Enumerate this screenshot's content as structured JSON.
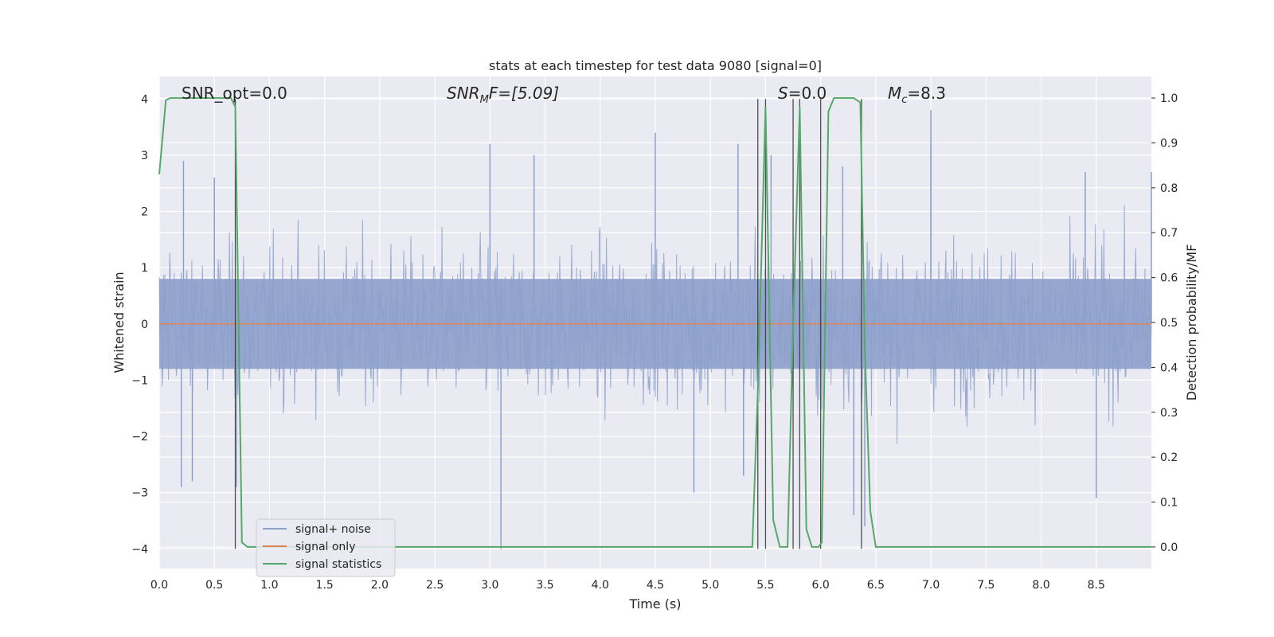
{
  "chart_data": {
    "type": "line",
    "title": "stats at each timestep for test data 9080 [signal=0]",
    "xlabel": "Time (s)",
    "ylabel_left": "Whitened strain",
    "ylabel_right": "Detection probability/MF",
    "xlim": [
      0.0,
      9.0
    ],
    "ylim_left": [
      -4.35,
      4.4
    ],
    "ylim_right": [
      -0.048,
      1.048
    ],
    "x_ticks": [
      "0.0",
      "0.5",
      "1.0",
      "1.5",
      "2.0",
      "2.5",
      "3.0",
      "3.5",
      "4.0",
      "4.5",
      "5.0",
      "5.5",
      "6.0",
      "6.5",
      "7.0",
      "7.5",
      "8.0",
      "8.5"
    ],
    "y_ticks_left": [
      "4",
      "3",
      "2",
      "1",
      "0",
      "−1",
      "−2",
      "−3",
      "−4"
    ],
    "y_ticks_right": [
      "1.0",
      "0.9",
      "0.8",
      "0.7",
      "0.6",
      "0.5",
      "0.4",
      "0.3",
      "0.2",
      "0.1",
      "0.0"
    ],
    "annotations": {
      "snr_opt": "SNR_opt=0.0",
      "snr_mf_main": "SNR",
      "snr_mf_sub": "M",
      "snr_mf_rest": "F=[5.09]",
      "s_main": "S",
      "s_rest": "=0.0",
      "mc_main": "M",
      "mc_sub": "c",
      "mc_rest": "=8.3"
    },
    "legend": {
      "placement": "lower-left",
      "entries": [
        "signal+ noise",
        "signal only",
        "signal statistics"
      ]
    },
    "colors": {
      "noise": "#8da0cb",
      "signal": "#dd8452",
      "stats": "#55a868",
      "vlines": "#333333",
      "bg": "#eaeaf2",
      "grid": "#ffffff"
    },
    "series": [
      {
        "name": "signal statistics",
        "axis": "right",
        "x": [
          0.0,
          0.06,
          0.1,
          0.2,
          0.3,
          0.4,
          0.5,
          0.6,
          0.65,
          0.69,
          0.75,
          0.8,
          0.9,
          1.0,
          2.0,
          3.0,
          4.0,
          5.0,
          5.38,
          5.43,
          5.5,
          5.57,
          5.63,
          5.7,
          5.75,
          5.81,
          5.87,
          5.92,
          5.98,
          6.01,
          6.07,
          6.12,
          6.2,
          6.3,
          6.36,
          6.4,
          6.45,
          6.5,
          6.6,
          6.7,
          7.0,
          8.0,
          8.5,
          9.0
        ],
        "y": [
          0.83,
          0.995,
          1.0,
          1.0,
          1.0,
          1.0,
          1.0,
          1.0,
          1.0,
          0.98,
          0.01,
          0.0,
          0.0,
          0.0,
          0.0,
          0.0,
          0.0,
          0.0,
          0.0,
          0.35,
          0.98,
          0.06,
          0.0,
          0.0,
          0.5,
          0.98,
          0.04,
          0.0,
          0.0,
          0.01,
          0.97,
          1.0,
          1.0,
          1.0,
          0.99,
          0.45,
          0.08,
          0.0,
          0.0,
          0.0,
          0.0,
          0.0,
          0.0,
          0.0
        ]
      },
      {
        "name": "signal only",
        "axis": "left",
        "x": [
          0.0,
          9.0
        ],
        "y": [
          0.0,
          0.0
        ]
      }
    ],
    "noise": {
      "name": "signal+ noise",
      "axis": "left",
      "spikes_up": [
        [
          0.22,
          2.9
        ],
        [
          0.5,
          2.6
        ],
        [
          3.0,
          3.2
        ],
        [
          3.4,
          3.0
        ],
        [
          4.5,
          3.4
        ],
        [
          5.25,
          3.2
        ],
        [
          5.55,
          3.0
        ],
        [
          6.2,
          2.8
        ],
        [
          7.0,
          3.8
        ],
        [
          7.0,
          3.2
        ],
        [
          8.4,
          2.7
        ],
        [
          9.0,
          2.7
        ]
      ],
      "spikes_down": [
        [
          0.2,
          -2.9
        ],
        [
          0.3,
          -2.8
        ],
        [
          0.7,
          -2.9
        ],
        [
          3.1,
          -4.0
        ],
        [
          4.85,
          -3.0
        ],
        [
          5.3,
          -2.7
        ],
        [
          6.3,
          -3.4
        ],
        [
          6.4,
          -3.6
        ],
        [
          8.5,
          -3.1
        ]
      ]
    },
    "vlines_x": [
      0.69,
      5.43,
      5.5,
      5.75,
      5.81,
      6.0,
      6.37
    ]
  }
}
